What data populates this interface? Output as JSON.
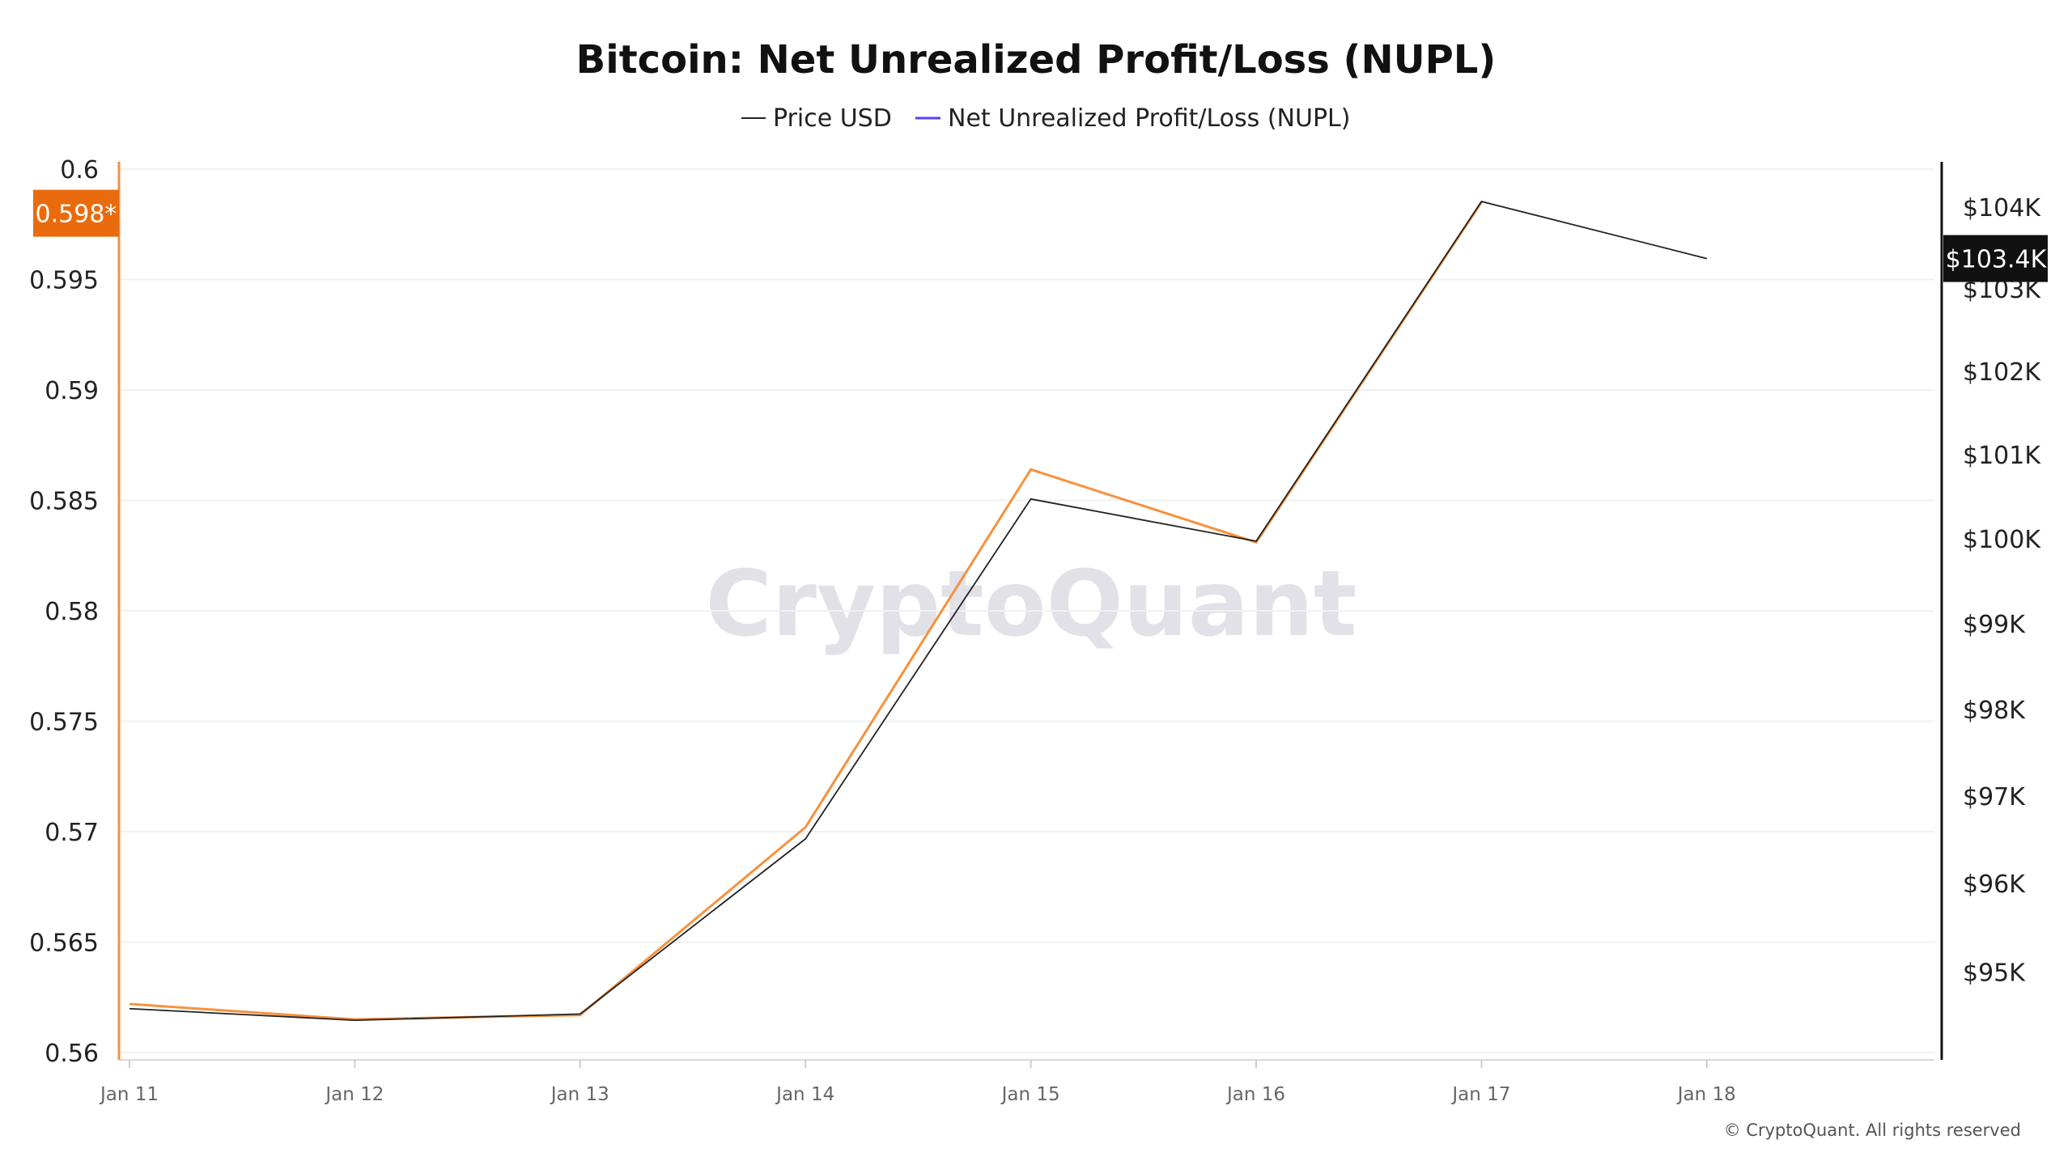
{
  "chart_data": {
    "type": "line",
    "title": "Bitcoin: Net Unrealized Profit/Loss (NUPL)",
    "legend": {
      "placement": "top-center",
      "entries": [
        {
          "label": "Price USD",
          "color": "#222222"
        },
        {
          "label": "Net Unrealized Profit/Loss (NUPL)",
          "color": "#5b3df5"
        }
      ]
    },
    "x": [
      "Jan 11",
      "Jan 12",
      "Jan 13",
      "Jan 14",
      "Jan 15",
      "Jan 16",
      "Jan 17",
      "Jan 18"
    ],
    "x_ticks": [
      "Jan 11",
      "Jan 12",
      "Jan 13",
      "Jan 14",
      "Jan 15",
      "Jan 16",
      "Jan 17",
      "Jan 18"
    ],
    "series": [
      {
        "name": "Price USD",
        "axis": "right",
        "color": "#222222",
        "values": [
          94590,
          94460,
          94530,
          96510,
          100470,
          99970,
          104070,
          103370
        ]
      },
      {
        "name": "Net Unrealized Profit/Loss (NUPL)",
        "axis": "left",
        "color": "#f7913d",
        "values": [
          0.5622,
          0.5615,
          0.5617,
          0.5702,
          0.5864,
          0.5831,
          0.5985,
          null
        ]
      }
    ],
    "y_left": {
      "ylim": [
        0.56,
        0.6
      ],
      "ticks": [
        "0.6",
        "0.595",
        "0.59",
        "0.585",
        "0.58",
        "0.575",
        "0.57",
        "0.565",
        "0.56"
      ],
      "tick_values": [
        0.6,
        0.595,
        0.59,
        0.585,
        0.58,
        0.575,
        0.57,
        0.565,
        0.56
      ],
      "axis_color": "#f7913d",
      "current_label": "0.598*",
      "current_value": 0.598,
      "current_label_color": "#ea6a0e"
    },
    "y_right": {
      "scale": "log",
      "ylim": [
        94100,
        104470
      ],
      "ticks": [
        "$104K",
        "$103K",
        "$102K",
        "$101K",
        "$100K",
        "$99K",
        "$98K",
        "$97K",
        "$96K",
        "$95K"
      ],
      "tick_values": [
        104000,
        103000,
        102000,
        101000,
        100000,
        99000,
        98000,
        97000,
        96000,
        95000
      ],
      "axis_color": "#111111",
      "current_label": "$103.4K",
      "current_value": 103370,
      "current_label_color": "#111111"
    },
    "grid": true
  },
  "watermark": "CryptoQuant",
  "copyright": "© CryptoQuant. All rights reserved"
}
